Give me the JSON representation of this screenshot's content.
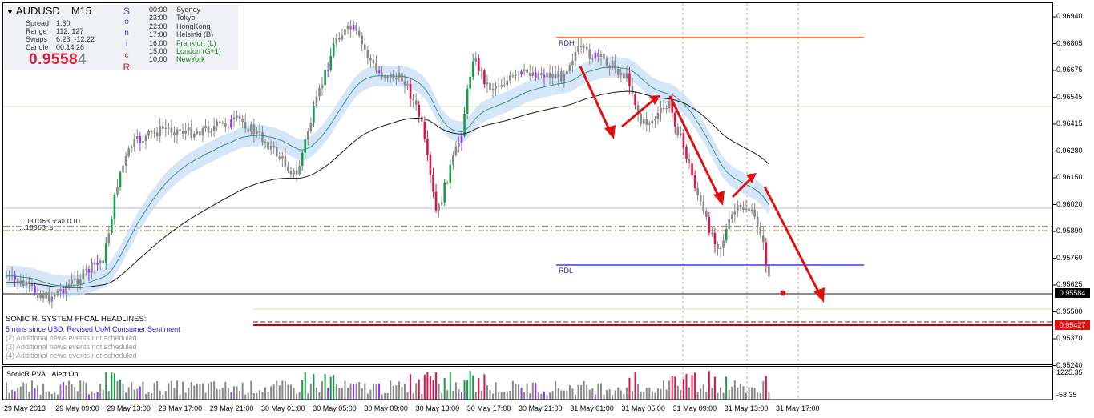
{
  "chart_title": {
    "symbol": "AUDUSD",
    "timeframe": "M15",
    "menu_icon": "triangle-down-icon"
  },
  "info": [
    {
      "label": "Spread",
      "value": "1.30"
    },
    {
      "label": "Range",
      "value": "112, 127"
    },
    {
      "label": "Swaps",
      "value": "6.23, -12.22"
    },
    {
      "label": "Candle",
      "value": "00:14:26"
    }
  ],
  "big_price": {
    "main": "0.9558",
    "last": "4"
  },
  "sonic_letters": [
    "S",
    "o",
    "n",
    "i",
    "c",
    "R"
  ],
  "sessions": [
    {
      "time": "00:00",
      "name": "Sydney",
      "color": "#333333"
    },
    {
      "time": "23:00",
      "name": "Tokyo",
      "color": "#333333"
    },
    {
      "time": "22:00",
      "name": "HongKong",
      "color": "#333333"
    },
    {
      "time": "17:00",
      "name": "Helsinki  (B)",
      "color": "#333333"
    },
    {
      "time": "16:00",
      "name": "Frankfurt  (L)",
      "color": "#1a8a1a"
    },
    {
      "time": "15:00",
      "name": "London  (G+1)",
      "color": "#1a8a1a"
    },
    {
      "time": "10:00",
      "name": "NewYork",
      "color": "#1a8a1a"
    }
  ],
  "overlay_text": {
    "level_a": "...031063 :call 0.01",
    "level_b": "...18363 :sl"
  },
  "levels": {
    "rdh": "RDH",
    "rdl": "RDL"
  },
  "news": {
    "title": "SONIC R. SYSTEM  FFCAL HEADLINES:",
    "items": [
      {
        "text": "5 mins since USD: Revised UoM Consumer Sentiment",
        "color": "#1a1ae0"
      },
      {
        "text": "(2)  Additional news events not scheduled",
        "color": "#a0a0a0"
      },
      {
        "text": "(3)  Additional news events not scheduled",
        "color": "#a0a0a0"
      },
      {
        "text": "(4)  Additional news events not scheduled",
        "color": "#a0a0a0"
      }
    ]
  },
  "indicator": {
    "name": "SonicR PVA",
    "alert": "Alert On"
  },
  "price_axis": [
    "0.96940",
    "0.96805",
    "0.96675",
    "0.96545",
    "0.96415",
    "0.96280",
    "0.96150",
    "0.96020",
    "0.95890",
    "0.95760",
    "0.95625",
    "0.95500",
    "0.95370",
    "0.95240"
  ],
  "price_boxes": {
    "current": "0.95584",
    "level": "0.95427"
  },
  "volume_axis": {
    "top": "1225.35",
    "bottom": "-58.35"
  },
  "time_axis": [
    "29 May 2013",
    "29 May 09:00",
    "29 May 13:00",
    "29 May 17:00",
    "29 May 21:00",
    "30 May 01:00",
    "30 May 05:00",
    "30 May 09:00",
    "30 May 13:00",
    "30 May 17:00",
    "30 May 21:00",
    "31 May 01:00",
    "31 May 05:00",
    "31 May 09:00",
    "31 May 13:00",
    "31 May 17:00"
  ],
  "colors": {
    "bull_climax": "#1a9a4a",
    "bear_climax": "#e0124a",
    "rising": "#9b30ff",
    "bar": "#888888",
    "ema_band": "#c5def5",
    "ema_line": "#2a8a8a",
    "ma_line": "#1a1a1a",
    "arrow": "#e01010",
    "rdh_line": "#ff4500",
    "rdl_line": "#3a3af0",
    "support": "#cc0000",
    "current_line": "#1a1a1a"
  }
}
